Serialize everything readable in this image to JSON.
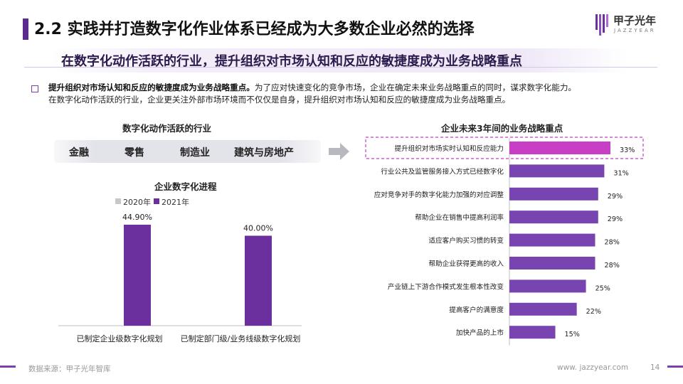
{
  "header": {
    "title": "2.2 实践并打造数字化作业体系已经成为大多数企业必然的选择",
    "logo_text": "甲子光年",
    "logo_sub": "JAZZYEAR"
  },
  "subtitle": "在数字化动作活跃的行业，提升组织对市场认知和反应的敏捷度成为业务战略重点",
  "intro": {
    "bold": "提升组织对市场认知和反应的敏捷度成为业务战略重点。",
    "text1": "为了应对快速变化的竞争市场，企业在确定未来业务战略重点的同时，谋求数字化能力。",
    "text2": "在数字化动作活跃的行业，企业更关注外部市场环境而不仅仅是自身，提升组织对市场认知和反应的敏捷度成为业务战略重点。"
  },
  "industries": {
    "title": "数字化动作活跃的行业",
    "items": [
      "金融",
      "零售",
      "制造业",
      "建筑与房地产"
    ]
  },
  "colors": {
    "purple": "#6b2f9e",
    "highlight": "#c83ec4",
    "bar_purple": "#7845b0",
    "gray": "#c8c8c8",
    "accent": "#5a2a8c"
  },
  "chart_data": [
    {
      "type": "bar",
      "title": "企业数字化进程",
      "categories": [
        "已制定企业级数字化规划",
        "已制定部门级/业务线级数字化规划"
      ],
      "series": [
        {
          "name": "2020年",
          "values": [
            0.0633,
            0.0633
          ],
          "labels": [
            "",
            ""
          ]
        },
        {
          "name": "2021年",
          "values": [
            44.9,
            40.0
          ],
          "labels": [
            "44.90%",
            "40.00%"
          ]
        }
      ],
      "legend": "top-left",
      "grid": false
    },
    {
      "type": "bar",
      "orientation": "horizontal",
      "title": "企业未来3年间的业务战略重点",
      "categories": [
        "提升组织对市场实时认知和反应能力",
        "行业公共及监管服务接入方式已经数字化",
        "应对竞争对手的数字化能力加强的对应调整",
        "帮助企业在销售中提高利润率",
        "适应客户购买习惯的转变",
        "帮助企业获得更高的收入",
        "产业链上下游合作模式发生根本性改变",
        "提高客户的满意度",
        "加快产品的上市"
      ],
      "values": [
        33,
        31,
        29,
        29,
        28,
        28,
        25,
        22,
        15
      ],
      "labels": [
        "33%",
        "31%",
        "29%",
        "29%",
        "28%",
        "28%",
        "25%",
        "22%",
        "15%"
      ],
      "highlight_index": 0,
      "grid": false
    }
  ],
  "footer": {
    "source": "数据来源：甲子光年智库",
    "site": "www. jazzyear.com",
    "page": "14"
  }
}
